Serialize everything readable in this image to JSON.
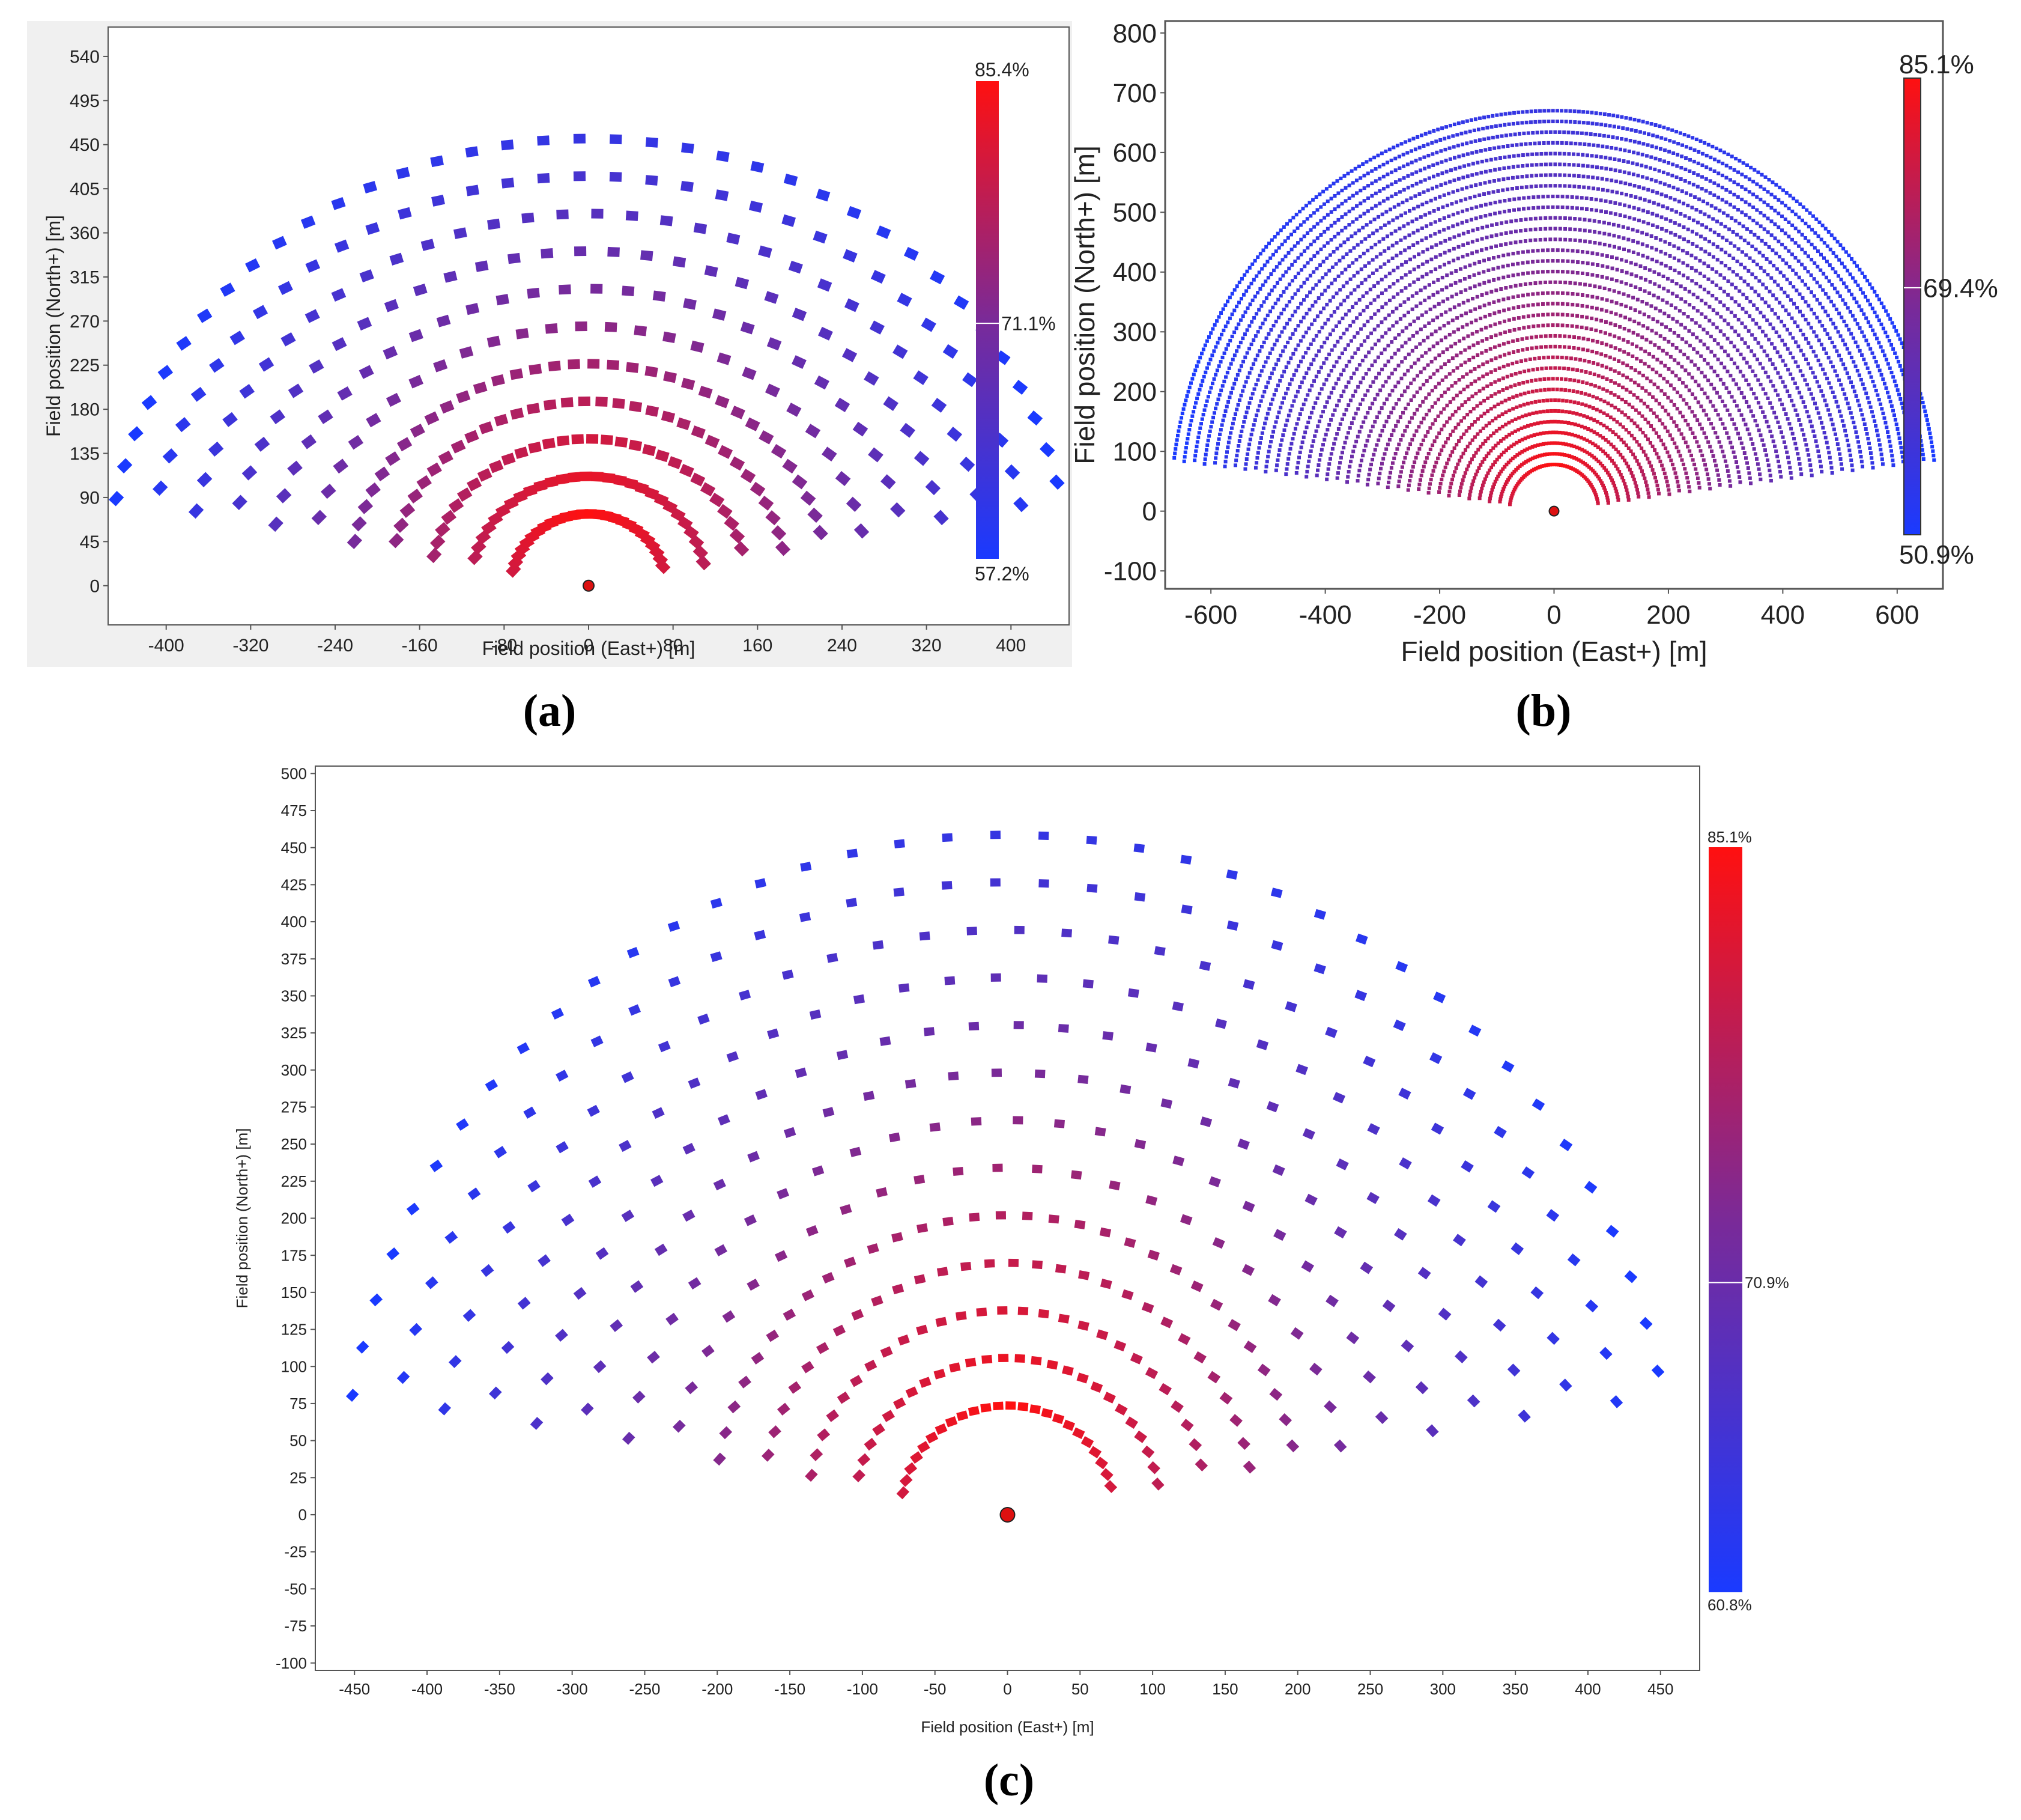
{
  "captions": {
    "a": "(a)",
    "b": "(b)",
    "c": "(c)"
  },
  "colors": {
    "high": "#ff1010",
    "mid": "#7a2a98",
    "low": "#1a3aff",
    "tower_fill": "#dd1111"
  },
  "chart_data": [
    {
      "id": "a",
      "type": "scatter",
      "title": "",
      "xlabel": "Field position (East+) [m]",
      "ylabel": "Field position (North+) [m]",
      "xlim": [
        -455,
        455
      ],
      "ylim": [
        -40,
        570
      ],
      "xticks": [
        -400,
        -320,
        -240,
        -160,
        -80,
        0,
        80,
        160,
        240,
        320,
        400
      ],
      "yticks": [
        0,
        45,
        90,
        135,
        180,
        225,
        270,
        315,
        360,
        405,
        450,
        495,
        540
      ],
      "colorbar": {
        "max_label": "85.4%",
        "mid_label": "71.1%",
        "min_label": "57.2%",
        "max": 85.4,
        "mid": 71.1,
        "min": 57.2
      },
      "tower": {
        "x": 0,
        "y": 0
      },
      "field": {
        "inner_radius": 72,
        "outer_radius": 455,
        "rows": 11,
        "angular_extent_deg": 162,
        "first_row_count": 26,
        "marker": "square-large"
      }
    },
    {
      "id": "b",
      "type": "scatter",
      "title": "",
      "xlabel": "Field position (East+) [m]",
      "ylabel": "Field position (North+) [m]",
      "xlim": [
        -680,
        680
      ],
      "ylim": [
        -130,
        820
      ],
      "xticks": [
        -600,
        -400,
        -200,
        0,
        200,
        400,
        600
      ],
      "yticks": [
        -100,
        0,
        100,
        200,
        300,
        400,
        500,
        600,
        700,
        800
      ],
      "colorbar": {
        "max_label": "85.1%",
        "mid_label": "69.4%",
        "min_label": "50.9%",
        "max": 85.1,
        "mid": 69.4,
        "min": 50.9
      },
      "tower": {
        "x": 0,
        "y": 0
      },
      "field": {
        "inner_radius": 78,
        "outer_radius": 670,
        "rows": 34,
        "angular_extent_deg": 166,
        "first_row_count": 60,
        "marker": "dot-small"
      }
    },
    {
      "id": "c",
      "type": "scatter",
      "title": "",
      "xlabel": "Field position (East+) [m]",
      "ylabel": "Field position (North+) [m]",
      "xlim": [
        -477,
        477
      ],
      "ylim": [
        -105,
        505
      ],
      "xticks": [
        -450,
        -400,
        -350,
        -300,
        -250,
        -200,
        -150,
        -100,
        -50,
        0,
        50,
        100,
        150,
        200,
        250,
        300,
        350,
        400,
        450
      ],
      "yticks": [
        -100,
        -75,
        -50,
        -25,
        0,
        25,
        50,
        75,
        100,
        125,
        150,
        175,
        200,
        225,
        250,
        275,
        300,
        325,
        350,
        375,
        400,
        425,
        450,
        475,
        500
      ],
      "colorbar": {
        "max_label": "85.1%",
        "mid_label": "70.9%",
        "min_label": "60.8%",
        "max": 85.1,
        "mid": 70.9,
        "min": 60.8
      },
      "tower": {
        "x": 0,
        "y": 0
      },
      "field": {
        "inner_radius": 73,
        "outer_radius": 458,
        "rows": 13,
        "angular_extent_deg": 164,
        "first_row_count": 24,
        "marker": "square-large"
      }
    }
  ]
}
